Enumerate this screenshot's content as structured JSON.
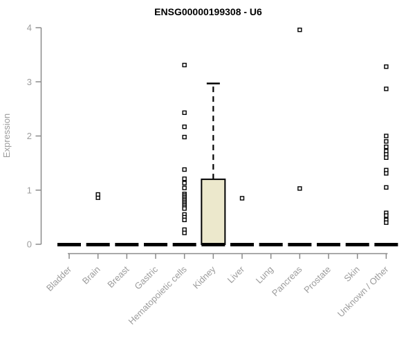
{
  "window": {
    "background": "#ffffff"
  },
  "chart_data": {
    "type": "boxplot",
    "title": "ENSG00000199308 - U6",
    "xlabel": "",
    "ylabel": "Expression",
    "ylim": [
      0,
      4
    ],
    "yticks": [
      0,
      1,
      2,
      3,
      4
    ],
    "grid": false,
    "legend": false,
    "categories": [
      "Bladder",
      "Brain",
      "Breast",
      "Gastric",
      "Hematopoietic cells",
      "Kidney",
      "Liver",
      "Lung",
      "Pancreas",
      "Prostate",
      "Skin",
      "Unknown / Other"
    ],
    "series": [
      {
        "category": "Bladder",
        "median": 0,
        "q1": 0,
        "q3": 0,
        "whisker_low": 0,
        "whisker_high": 0,
        "outliers": []
      },
      {
        "category": "Brain",
        "median": 0,
        "q1": 0,
        "q3": 0,
        "whisker_low": 0,
        "whisker_high": 0,
        "outliers": [
          0.86,
          0.92
        ]
      },
      {
        "category": "Breast",
        "median": 0,
        "q1": 0,
        "q3": 0,
        "whisker_low": 0,
        "whisker_high": 0,
        "outliers": []
      },
      {
        "category": "Gastric",
        "median": 0,
        "q1": 0,
        "q3": 0,
        "whisker_low": 0,
        "whisker_high": 0,
        "outliers": []
      },
      {
        "category": "Hematopoietic cells",
        "median": 0,
        "q1": 0,
        "q3": 0,
        "whisker_low": 0,
        "whisker_high": 0,
        "outliers": [
          3.31,
          2.43,
          2.17,
          1.98,
          1.38,
          1.21,
          1.13,
          1.04,
          0.93,
          0.9,
          0.87,
          0.84,
          0.81,
          0.78,
          0.75,
          0.72,
          0.69,
          0.66,
          0.55,
          0.5,
          0.45,
          0.27,
          0.21
        ]
      },
      {
        "category": "Kidney",
        "median": 0,
        "q1": 0,
        "q3": 1.2,
        "whisker_low": 0,
        "whisker_high": 2.97,
        "outliers": []
      },
      {
        "category": "Liver",
        "median": 0,
        "q1": 0,
        "q3": 0,
        "whisker_low": 0,
        "whisker_high": 0,
        "outliers": [
          0.85
        ]
      },
      {
        "category": "Lung",
        "median": 0,
        "q1": 0,
        "q3": 0,
        "whisker_low": 0,
        "whisker_high": 0,
        "outliers": []
      },
      {
        "category": "Pancreas",
        "median": 0,
        "q1": 0,
        "q3": 0,
        "whisker_low": 0,
        "whisker_high": 0,
        "outliers": [
          1.03,
          3.96
        ]
      },
      {
        "category": "Prostate",
        "median": 0,
        "q1": 0,
        "q3": 0,
        "whisker_low": 0,
        "whisker_high": 0,
        "outliers": []
      },
      {
        "category": "Skin",
        "median": 0,
        "q1": 0,
        "q3": 0,
        "whisker_low": 0,
        "whisker_high": 0,
        "outliers": []
      },
      {
        "category": "Unknown / Other",
        "median": 0,
        "q1": 0,
        "q3": 0,
        "whisker_low": 0,
        "whisker_high": 0,
        "outliers": [
          3.28,
          2.87,
          2.0,
          1.9,
          1.8,
          1.72,
          1.66,
          1.6,
          1.37,
          1.31,
          1.05,
          0.58,
          0.53,
          0.45,
          0.4
        ]
      }
    ],
    "colors": {
      "box_fill": "#ECE8CC",
      "box_border": "#000000",
      "median": "#000000",
      "outlier_stroke": "#000000",
      "outlier_fill": "#ffffff",
      "axis_line": "#8a8a8a",
      "tick_text": "#9c9c9c",
      "title_text": "#000000"
    }
  }
}
